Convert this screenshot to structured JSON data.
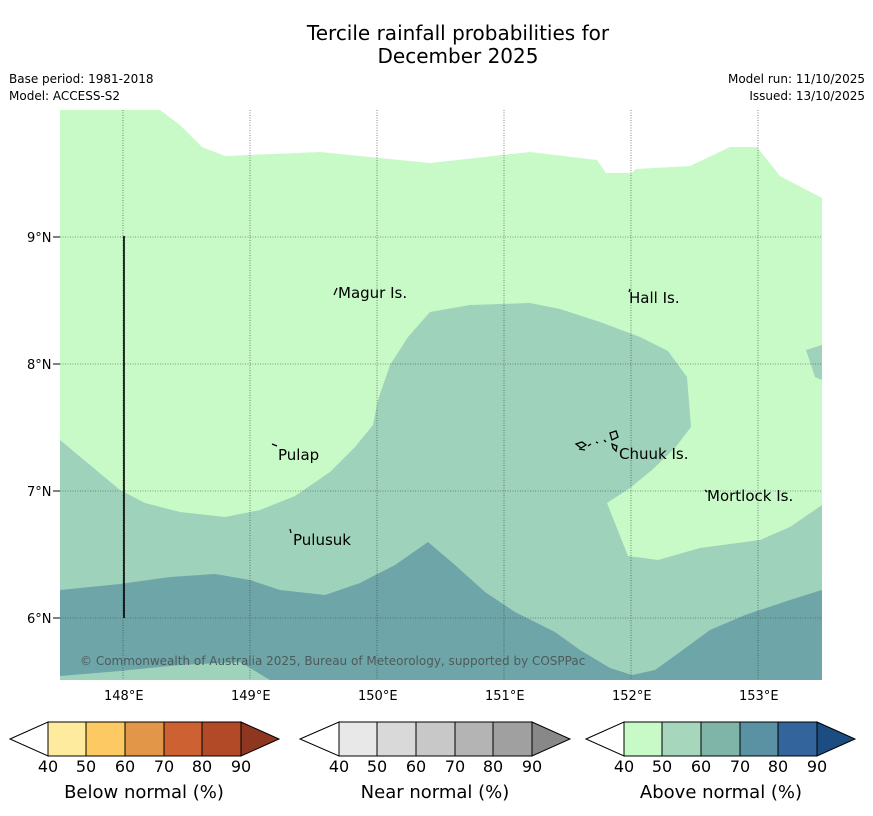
{
  "title_line1": "Tercile rainfall probabilities for",
  "title_line2": "December 2025",
  "meta": {
    "base_period": "Base period: 1981-2018",
    "model": "Model: ACCESS-S2",
    "model_run": "Model run: 11/10/2025",
    "issued": "Issued: 13/10/2025"
  },
  "map": {
    "lat_labels": [
      "9°N",
      "8°N",
      "7°N",
      "6°N"
    ],
    "lon_labels": [
      "148°E",
      "149°E",
      "150°E",
      "151°E",
      "152°E",
      "153°E"
    ],
    "places": [
      {
        "name": "Magur Is."
      },
      {
        "name": "Hall Is."
      },
      {
        "name": "Pulap"
      },
      {
        "name": "Chuuk Is."
      },
      {
        "name": "Mortlock Is."
      },
      {
        "name": "Pulusuk"
      }
    ],
    "copyright": "© Commonwealth of Australia 2025, Bureau of Meteorology, supported by COSPPac",
    "colors": {
      "above_50": "#c8fac8",
      "above_60": "#9ed2bb",
      "above_70": "#6ea5a8"
    }
  },
  "colorbars": [
    {
      "label": "Below normal (%)",
      "ticks": [
        "40",
        "50",
        "60",
        "70",
        "80",
        "90"
      ],
      "colors": [
        "#ffeb9e",
        "#fdc962",
        "#e29647",
        "#cd6132",
        "#b24a28",
        "#8e3620"
      ]
    },
    {
      "label": "Near normal (%)",
      "ticks": [
        "40",
        "50",
        "60",
        "70",
        "80",
        "90"
      ],
      "colors": [
        "#e8e8e8",
        "#d9d9d9",
        "#c8c8c8",
        "#b4b4b4",
        "#a0a0a0",
        "#888888"
      ]
    },
    {
      "label": "Above normal (%)",
      "ticks": [
        "40",
        "50",
        "60",
        "70",
        "80",
        "90"
      ],
      "colors": [
        "#c8fac8",
        "#a6d6bc",
        "#7fb4a8",
        "#5a92a3",
        "#33659c",
        "#1c4d82"
      ]
    }
  ]
}
